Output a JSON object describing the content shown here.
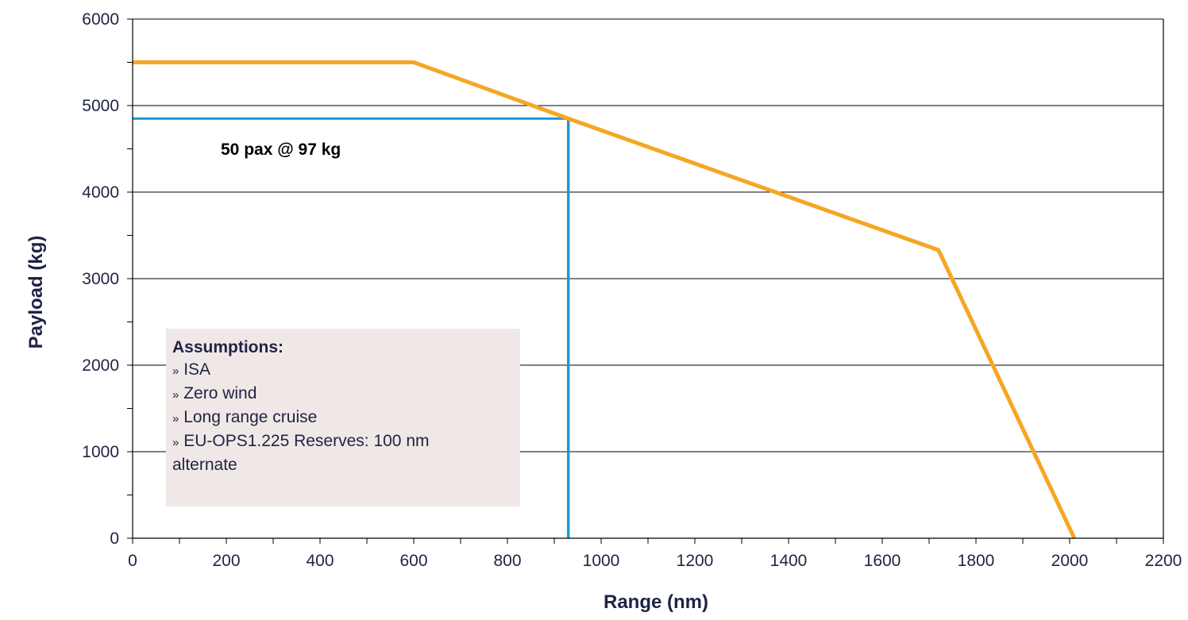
{
  "chart_data": {
    "type": "line",
    "title": "",
    "xlabel": "Range (nm)",
    "ylabel": "Payload (kg)",
    "xlim": [
      0,
      2200
    ],
    "ylim": [
      0,
      6000
    ],
    "x_ticks": [
      "0",
      "200",
      "400",
      "600",
      "800",
      "1000",
      "1200",
      "1400",
      "1600",
      "1800",
      "2000",
      "2200"
    ],
    "y_ticks": [
      "0",
      "1000",
      "2000",
      "3000",
      "4000",
      "5000",
      "6000"
    ],
    "grid": "horizontal",
    "series": [
      {
        "color": "#f5a623",
        "points": [
          [
            0,
            5500
          ],
          [
            600,
            5500
          ],
          [
            930,
            4850
          ],
          [
            1720,
            3330
          ],
          [
            2010,
            0
          ]
        ]
      }
    ],
    "reference_line": {
      "color": "#1a9bd7",
      "x": 930,
      "y": 4850
    },
    "annotation": "50 pax @ 97 kg",
    "assumptions": {
      "title": "Assumptions:",
      "bullet": "»",
      "items": [
        "ISA",
        "Zero wind",
        "Long range cruise",
        "EU-OPS1.225 Reserves: 100 nm"
      ],
      "continuation": "alternate"
    }
  }
}
